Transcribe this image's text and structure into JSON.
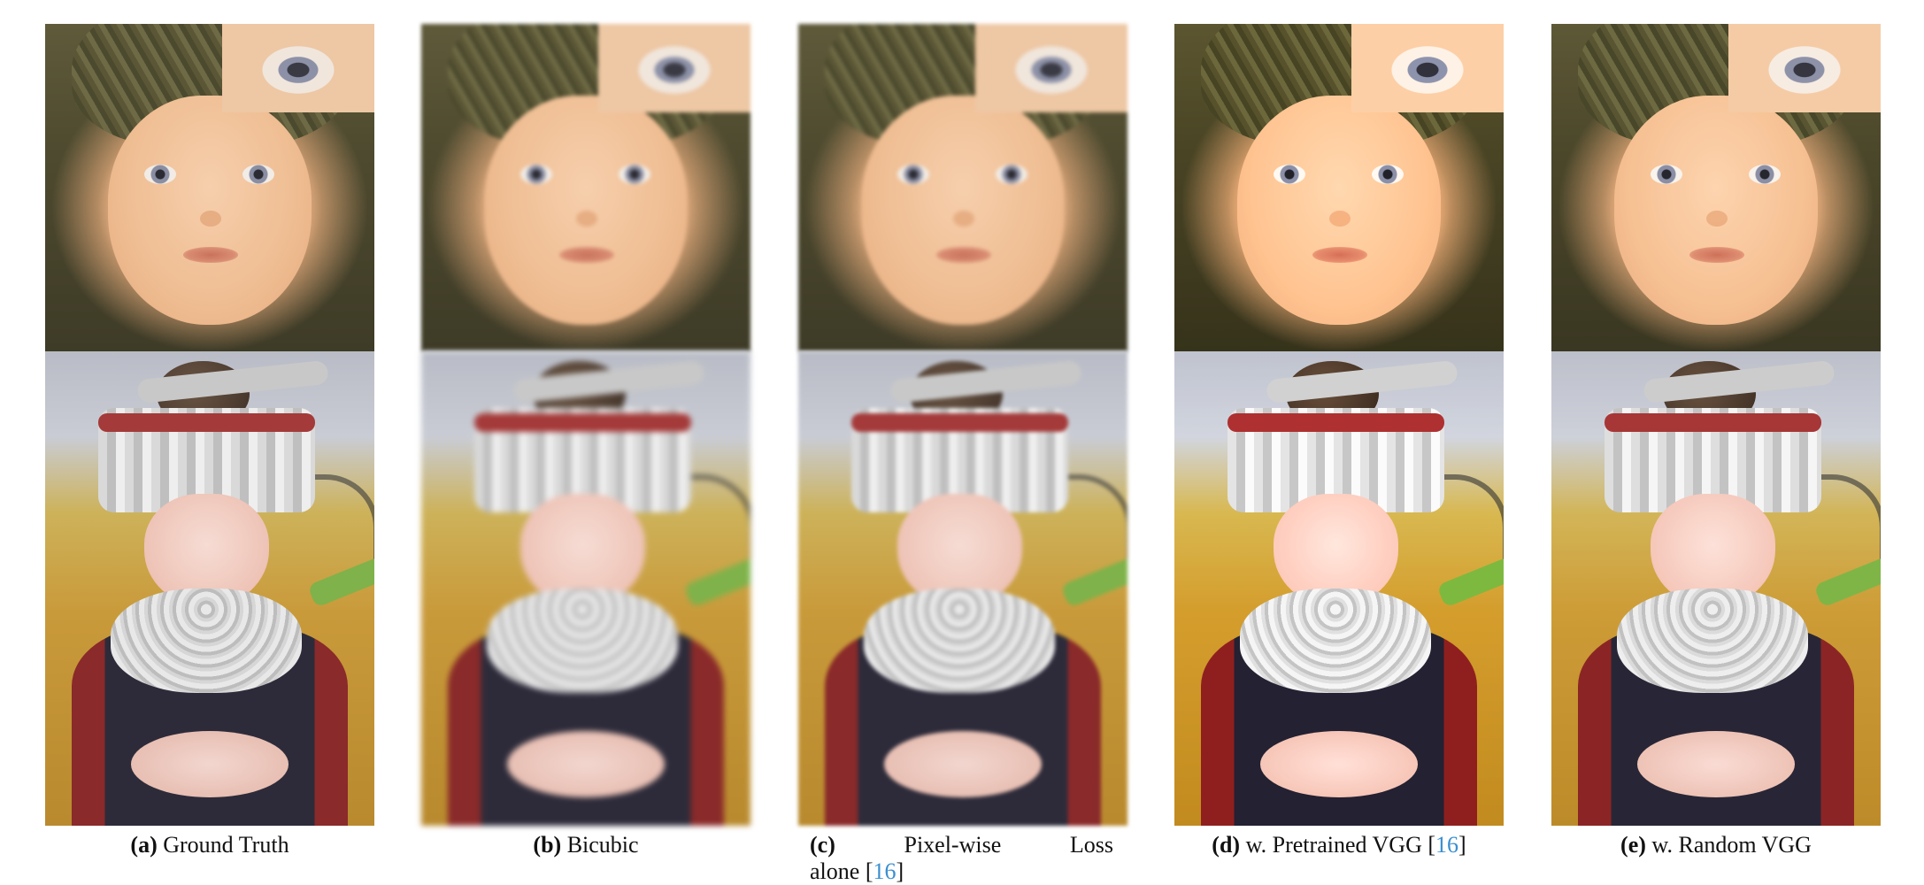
{
  "figure": {
    "panels": [
      {
        "id": "a",
        "letter": "(a)",
        "label": "Ground Truth",
        "cite": ""
      },
      {
        "id": "b",
        "letter": "(b)",
        "label": "Bicubic",
        "cite": ""
      },
      {
        "id": "c",
        "letter": "(c)",
        "label_line1": "Pixel-wise      Loss",
        "label_line2": "alone ",
        "cite": "16"
      },
      {
        "id": "d",
        "letter": "(d)",
        "label": "w. Pretrained VGG ",
        "cite": "16"
      },
      {
        "id": "e",
        "letter": "(e)",
        "label": "w. Random VGG",
        "cite": ""
      }
    ]
  }
}
